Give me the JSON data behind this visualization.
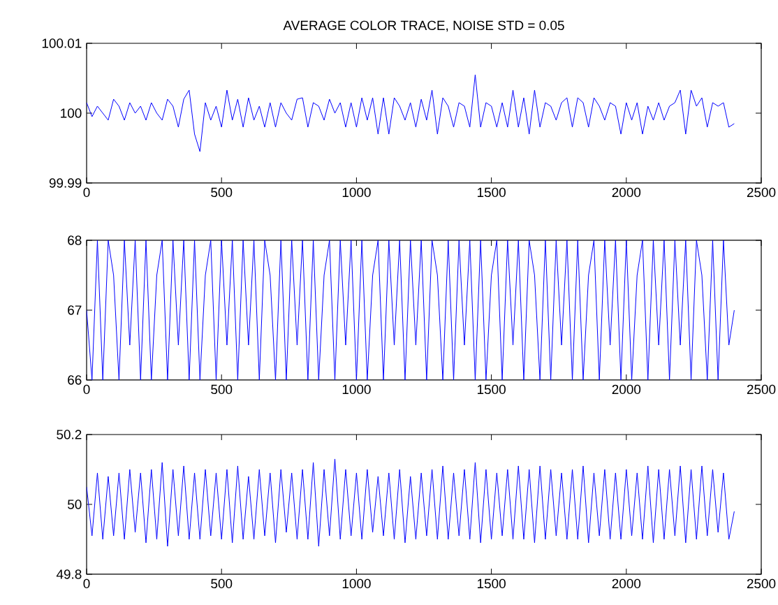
{
  "chart_data": [
    {
      "type": "line",
      "title": "AVERAGE COLOR TRACE, NOISE STD = 0.05",
      "color": "#0000ff",
      "grid": false,
      "x": [
        0,
        20,
        40,
        60,
        80,
        100,
        120,
        140,
        160,
        180,
        200,
        220,
        240,
        260,
        280,
        300,
        320,
        340,
        360,
        380,
        400,
        420,
        440,
        460,
        480,
        500,
        520,
        540,
        560,
        580,
        600,
        620,
        640,
        660,
        680,
        700,
        720,
        740,
        760,
        780,
        800,
        820,
        840,
        860,
        880,
        900,
        920,
        940,
        960,
        980,
        1000,
        1020,
        1040,
        1060,
        1080,
        1100,
        1120,
        1140,
        1160,
        1180,
        1200,
        1220,
        1240,
        1260,
        1280,
        1300,
        1320,
        1340,
        1360,
        1380,
        1400,
        1420,
        1440,
        1460,
        1480,
        1500,
        1520,
        1540,
        1560,
        1580,
        1600,
        1620,
        1640,
        1660,
        1680,
        1700,
        1720,
        1740,
        1760,
        1780,
        1800,
        1820,
        1840,
        1860,
        1880,
        1900,
        1920,
        1940,
        1960,
        1980,
        2000,
        2020,
        2040,
        2060,
        2080,
        2100,
        2120,
        2140,
        2160,
        2180,
        2200,
        2220,
        2240,
        2260,
        2280,
        2300,
        2320,
        2340,
        2360,
        2380,
        2400
      ],
      "values": [
        100.0015,
        99.9995,
        100.001,
        100,
        99.999,
        100.002,
        100.001,
        99.999,
        100.0015,
        100,
        100.001,
        99.999,
        100.0015,
        100,
        99.999,
        100.002,
        100.001,
        99.998,
        100.002,
        100.0033,
        99.997,
        99.9945,
        100.0015,
        99.999,
        100.001,
        99.998,
        100.0033,
        99.999,
        100.002,
        99.998,
        100.0022,
        99.999,
        100.001,
        99.998,
        100.0015,
        99.998,
        100.0015,
        100,
        99.999,
        100.002,
        100.0022,
        99.998,
        100.0015,
        100.001,
        99.999,
        100.002,
        100,
        100.0015,
        99.998,
        100.0015,
        99.998,
        100.0022,
        99.999,
        100.0022,
        99.997,
        100.0022,
        99.997,
        100.0022,
        100.001,
        99.999,
        100.0015,
        99.998,
        100.002,
        99.999,
        100.0033,
        99.997,
        100.0022,
        100.001,
        99.998,
        100.0015,
        100.001,
        99.998,
        100.0055,
        99.998,
        100.0015,
        100.001,
        99.998,
        100.0015,
        99.998,
        100.0033,
        99.998,
        100.0022,
        99.997,
        100.0033,
        99.998,
        100.0015,
        100.001,
        99.999,
        100.0015,
        100.0022,
        99.998,
        100.0022,
        100.0015,
        99.998,
        100.0022,
        100.001,
        99.999,
        100.0015,
        100.001,
        99.997,
        100.0015,
        99.999,
        100.0015,
        99.997,
        100.001,
        99.999,
        100.0015,
        99.999,
        100.001,
        100.0015,
        100.0033,
        99.997,
        100.0033,
        100.001,
        100.0022,
        99.998,
        100.0015,
        100.001,
        100.0015,
        99.998,
        99.9985
      ],
      "xlim": [
        0,
        2500
      ],
      "xticks": [
        0,
        500,
        1000,
        1500,
        2000,
        2500
      ],
      "ylim": [
        99.99,
        100.01
      ],
      "yticks": [
        99.99,
        100,
        100.01
      ]
    },
    {
      "type": "line",
      "color": "#0000ff",
      "grid": false,
      "x": [
        0,
        20,
        40,
        60,
        80,
        100,
        120,
        140,
        160,
        180,
        200,
        220,
        240,
        260,
        280,
        300,
        320,
        340,
        360,
        380,
        400,
        420,
        440,
        460,
        480,
        500,
        520,
        540,
        560,
        580,
        600,
        620,
        640,
        660,
        680,
        700,
        720,
        740,
        760,
        780,
        800,
        820,
        840,
        860,
        880,
        900,
        920,
        940,
        960,
        980,
        1000,
        1020,
        1040,
        1060,
        1080,
        1100,
        1120,
        1140,
        1160,
        1180,
        1200,
        1220,
        1240,
        1260,
        1280,
        1300,
        1320,
        1340,
        1360,
        1380,
        1400,
        1420,
        1440,
        1460,
        1480,
        1500,
        1520,
        1540,
        1560,
        1580,
        1600,
        1620,
        1640,
        1660,
        1680,
        1700,
        1720,
        1740,
        1760,
        1780,
        1800,
        1820,
        1840,
        1860,
        1880,
        1900,
        1920,
        1940,
        1960,
        1980,
        2000,
        2020,
        2040,
        2060,
        2080,
        2100,
        2120,
        2140,
        2160,
        2180,
        2200,
        2220,
        2240,
        2260,
        2280,
        2300,
        2320,
        2340,
        2360,
        2380,
        2400
      ],
      "values": [
        67,
        66,
        68,
        66,
        68,
        67.5,
        66,
        68,
        66.5,
        68,
        66,
        68,
        66,
        67.5,
        68,
        66,
        68,
        66.5,
        68,
        66,
        68,
        66,
        67.5,
        68,
        66,
        68,
        66.5,
        68,
        66,
        68,
        66.5,
        68,
        66,
        68,
        67.5,
        66,
        68,
        66,
        68,
        66.5,
        68,
        66,
        68,
        66,
        67.5,
        68,
        66,
        68,
        66.5,
        68,
        66,
        68,
        66,
        67.5,
        68,
        66,
        68,
        66.5,
        68,
        66,
        68,
        66.5,
        68,
        66,
        68,
        67.5,
        66,
        68,
        66,
        68,
        66.5,
        68,
        66,
        68,
        66,
        67.5,
        68,
        66,
        68,
        66.5,
        68,
        66,
        68,
        67.5,
        66,
        68,
        66,
        68,
        66.5,
        68,
        66,
        68,
        66,
        67.5,
        68,
        66,
        68,
        66.5,
        68,
        66,
        68,
        66,
        67.5,
        68,
        66,
        68,
        66.5,
        68,
        66,
        68,
        66.5,
        68,
        66,
        68,
        67.5,
        66,
        68,
        66,
        68,
        66.5,
        67
      ],
      "xlim": [
        0,
        2500
      ],
      "xticks": [
        0,
        500,
        1000,
        1500,
        2000,
        2500
      ],
      "ylim": [
        66,
        68
      ],
      "yticks": [
        66,
        67,
        68
      ]
    },
    {
      "type": "line",
      "color": "#0000ff",
      "grid": false,
      "x": [
        0,
        20,
        40,
        60,
        80,
        100,
        120,
        140,
        160,
        180,
        200,
        220,
        240,
        260,
        280,
        300,
        320,
        340,
        360,
        380,
        400,
        420,
        440,
        460,
        480,
        500,
        520,
        540,
        560,
        580,
        600,
        620,
        640,
        660,
        680,
        700,
        720,
        740,
        760,
        780,
        800,
        820,
        840,
        860,
        880,
        900,
        920,
        940,
        960,
        980,
        1000,
        1020,
        1040,
        1060,
        1080,
        1100,
        1120,
        1140,
        1160,
        1180,
        1200,
        1220,
        1240,
        1260,
        1280,
        1300,
        1320,
        1340,
        1360,
        1380,
        1400,
        1420,
        1440,
        1460,
        1480,
        1500,
        1520,
        1540,
        1560,
        1580,
        1600,
        1620,
        1640,
        1660,
        1680,
        1700,
        1720,
        1740,
        1760,
        1780,
        1800,
        1820,
        1840,
        1860,
        1880,
        1900,
        1920,
        1940,
        1960,
        1980,
        2000,
        2020,
        2040,
        2060,
        2080,
        2100,
        2120,
        2140,
        2160,
        2180,
        2200,
        2220,
        2240,
        2260,
        2280,
        2300,
        2320,
        2340,
        2360,
        2380,
        2400
      ],
      "values": [
        50.05,
        49.91,
        50.09,
        49.9,
        50.08,
        49.91,
        50.09,
        49.9,
        50.1,
        49.92,
        50.09,
        49.89,
        50.1,
        49.9,
        50.12,
        49.88,
        50.1,
        49.91,
        50.11,
        49.9,
        50.09,
        49.9,
        50.1,
        49.91,
        50.09,
        49.9,
        50.1,
        49.89,
        50.11,
        49.9,
        50.08,
        49.9,
        50.1,
        49.91,
        50.09,
        49.89,
        50.1,
        49.92,
        50.09,
        49.9,
        50.1,
        49.9,
        50.12,
        49.88,
        50.1,
        49.91,
        50.13,
        49.9,
        50.1,
        49.91,
        50.09,
        49.9,
        50.1,
        49.92,
        50.08,
        49.91,
        50.09,
        49.9,
        50.1,
        49.89,
        50.08,
        49.9,
        50.09,
        49.91,
        50.1,
        49.9,
        50.11,
        49.9,
        50.09,
        49.91,
        50.1,
        49.9,
        50.12,
        49.89,
        50.1,
        49.9,
        50.09,
        49.91,
        50.1,
        49.9,
        50.11,
        49.9,
        50.1,
        49.89,
        50.11,
        49.9,
        50.1,
        49.91,
        50.09,
        49.9,
        50.1,
        49.9,
        50.11,
        49.89,
        50.09,
        49.91,
        50.1,
        49.9,
        50.09,
        49.9,
        50.1,
        49.91,
        50.09,
        49.9,
        50.11,
        49.89,
        50.1,
        49.9,
        50.1,
        49.91,
        50.11,
        49.89,
        50.1,
        49.9,
        50.11,
        49.91,
        50.1,
        49.92,
        50.09,
        49.9,
        49.98
      ],
      "xlim": [
        0,
        2500
      ],
      "xticks": [
        0,
        500,
        1000,
        1500,
        2000,
        2500
      ],
      "ylim": [
        49.8,
        50.2
      ],
      "yticks": [
        49.8,
        50,
        50.2
      ]
    }
  ]
}
